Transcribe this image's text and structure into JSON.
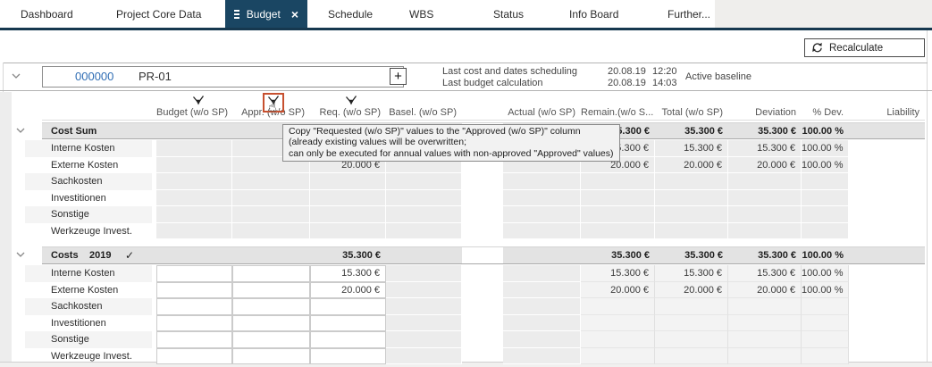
{
  "tabs": [
    {
      "label": "Dashboard"
    },
    {
      "label": "Project Core Data"
    },
    {
      "label": "Budget",
      "active": true
    },
    {
      "label": "Schedule"
    },
    {
      "label": "WBS"
    },
    {
      "label": "Status"
    },
    {
      "label": "Info Board"
    },
    {
      "label": "Further..."
    }
  ],
  "toolbar": {
    "recalculate_label": "Recalculate"
  },
  "project": {
    "id": "000000",
    "code": "PR-01",
    "info": [
      {
        "label": "Last cost and dates scheduling",
        "date": "20.08.19",
        "time": "12:20"
      },
      {
        "label": "Last budget calculation",
        "date": "20.08.19",
        "time": "14:03"
      }
    ],
    "baseline": "Active baseline"
  },
  "table": {
    "columns_left": [
      "Budget (w/o SP)",
      "Appr. (w/o SP)",
      "Req. (w/o SP)",
      "Basel. (w/o SP)"
    ],
    "columns_right": [
      "Actual (w/o SP)",
      "Remain.(w/o S...",
      "Total (w/o SP)",
      "Deviation",
      "% Dev.",
      "Liability"
    ],
    "filter_icon_columns": [
      "Budget (w/o SP)",
      "Appr. (w/o SP)",
      "Req. (w/o SP)"
    ],
    "highlighted_icon_column": "Appr. (w/o SP)",
    "sections": [
      {
        "title": "Cost Sum",
        "year": "",
        "checked": false,
        "totals": {
          "req": "",
          "remain": "35.300 €",
          "total": "35.300 €",
          "deviation": "35.300 €",
          "pdev": "100.00 %"
        },
        "rows": [
          {
            "label": "Interne Kosten",
            "req": "",
            "remain": "15.300 €",
            "total": "15.300 €",
            "deviation": "15.300 €",
            "pdev": "100.00 %"
          },
          {
            "label": "Externe Kosten",
            "req": "20.000 €",
            "remain": "20.000 €",
            "total": "20.000 €",
            "deviation": "20.000 €",
            "pdev": "100.00 %"
          },
          {
            "label": "Sachkosten",
            "req": "",
            "remain": "",
            "total": "",
            "deviation": "",
            "pdev": ""
          },
          {
            "label": "Investitionen",
            "req": "",
            "remain": "",
            "total": "",
            "deviation": "",
            "pdev": ""
          },
          {
            "label": "Sonstige",
            "req": "",
            "remain": "",
            "total": "",
            "deviation": "",
            "pdev": ""
          },
          {
            "label": "Werkzeuge Invest.",
            "req": "",
            "remain": "",
            "total": "",
            "deviation": "",
            "pdev": ""
          }
        ]
      },
      {
        "title": "Costs",
        "year": "2019",
        "checked": true,
        "totals": {
          "req": "35.300 €",
          "remain": "35.300 €",
          "total": "35.300 €",
          "deviation": "35.300 €",
          "pdev": "100.00 %"
        },
        "rows": [
          {
            "label": "Interne Kosten",
            "req": "15.300 €",
            "remain": "15.300 €",
            "total": "15.300 €",
            "deviation": "15.300 €",
            "pdev": "100.00 %"
          },
          {
            "label": "Externe Kosten",
            "req": "20.000 €",
            "remain": "20.000 €",
            "total": "20.000 €",
            "deviation": "20.000 €",
            "pdev": "100.00 %"
          },
          {
            "label": "Sachkosten",
            "req": "",
            "remain": "",
            "total": "",
            "deviation": "",
            "pdev": ""
          },
          {
            "label": "Investitionen",
            "req": "",
            "remain": "",
            "total": "",
            "deviation": "",
            "pdev": ""
          },
          {
            "label": "Sonstige",
            "req": "",
            "remain": "",
            "total": "",
            "deviation": "",
            "pdev": ""
          },
          {
            "label": "Werkzeuge Invest.",
            "req": "",
            "remain": "",
            "total": "",
            "deviation": "",
            "pdev": ""
          }
        ]
      }
    ]
  },
  "tooltip": {
    "line1": "Copy \"Requested (w/o SP)\" values to the \"Approved (w/o SP)\" column",
    "line2": "(already existing values will be overwritten;",
    "line3": "can only be executed for annual values with non-approved \"Approved\" values)"
  },
  "colors": {
    "navy": "#1a4663",
    "underline": "#16384f",
    "blue": "#2f6db4",
    "hl": "#c7502f"
  }
}
